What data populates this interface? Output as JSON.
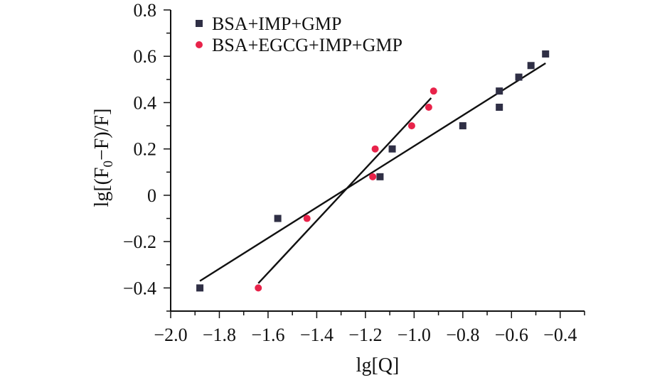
{
  "chart_data": {
    "type": "scatter",
    "xlabel": "lg[Q]",
    "ylabel_parts": {
      "prefix": "lg[(F",
      "subscript": "0",
      "suffix": "−F)/F]"
    },
    "xlim": [
      -2.0,
      -0.3
    ],
    "ylim": [
      -0.5,
      0.8
    ],
    "x_ticks": [
      -2.0,
      -1.8,
      -1.6,
      -1.4,
      -1.2,
      -1.0,
      -0.8,
      -0.6,
      -0.4
    ],
    "x_tick_labels": [
      "−2.0",
      "−1.8",
      "−1.6",
      "−1.4",
      "−1.2",
      "−1.0",
      "−0.8",
      "−0.6",
      "−0.4"
    ],
    "y_ticks": [
      -0.4,
      -0.2,
      0,
      0.2,
      0.4,
      0.6,
      0.8
    ],
    "y_tick_labels": [
      "−0.4",
      "−0.2",
      "0",
      "0.2",
      "0.4",
      "0.6",
      "0.8"
    ],
    "grid": false,
    "legend_position": "top-left",
    "series": [
      {
        "name": "BSA+IMP+GMP",
        "marker": "square",
        "color": "#2f2f45",
        "x": [
          -1.88,
          -1.56,
          -1.14,
          -1.09,
          -0.8,
          -0.65,
          -0.65,
          -0.57,
          -0.52,
          -0.46
        ],
        "y": [
          -0.4,
          -0.1,
          0.08,
          0.2,
          0.3,
          0.38,
          0.45,
          0.51,
          0.56,
          0.61
        ],
        "fit": {
          "x": [
            -1.88,
            -0.46
          ],
          "y": [
            -0.37,
            0.57
          ]
        }
      },
      {
        "name": "BSA+EGCG+IMP+GMP",
        "marker": "circle",
        "color": "#e8234a",
        "x": [
          -1.64,
          -1.44,
          -1.17,
          -1.16,
          -1.01,
          -0.94,
          -0.92
        ],
        "y": [
          -0.4,
          -0.1,
          0.08,
          0.2,
          0.3,
          0.38,
          0.45
        ],
        "fit": {
          "x": [
            -1.64,
            -0.93
          ],
          "y": [
            -0.38,
            0.42
          ]
        }
      }
    ]
  }
}
